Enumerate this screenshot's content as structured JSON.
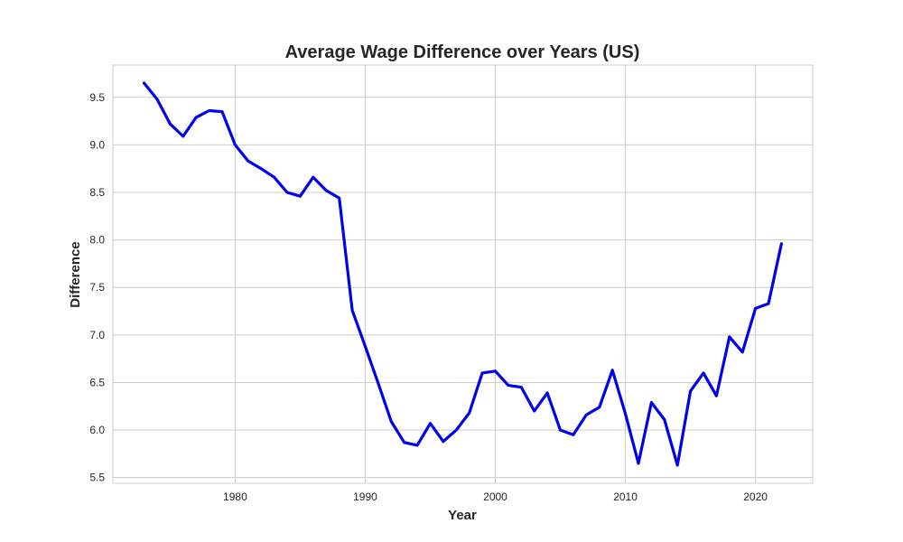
{
  "chart_data": {
    "type": "line",
    "title": "Average Wage Difference over Years (US)",
    "xlabel": "Year",
    "ylabel": "Difference",
    "xlim": [
      1970.6,
      2024.4
    ],
    "ylim": [
      5.44,
      9.84
    ],
    "xticks": [
      1980,
      1990,
      2000,
      2010,
      2020
    ],
    "yticks": [
      5.5,
      6.0,
      6.5,
      7.0,
      7.5,
      8.0,
      8.5,
      9.0,
      9.5
    ],
    "ytick_labels": [
      "5.5",
      "6.0",
      "6.5",
      "7.0",
      "7.5",
      "8.0",
      "8.5",
      "9.0",
      "9.5"
    ],
    "grid": true,
    "line_color": "#0000ee",
    "series": [
      {
        "x": [
          1973,
          1974,
          1975,
          1976,
          1977,
          1978,
          1979,
          1980,
          1981,
          1982,
          1983,
          1984,
          1985,
          1986,
          1987,
          1988,
          1989,
          1990,
          1991,
          1992,
          1993,
          1994,
          1995,
          1996,
          1997,
          1998,
          1999,
          2000,
          2001,
          2002,
          2003,
          2004,
          2005,
          2006,
          2007,
          2008,
          2009,
          2010,
          2011,
          2012,
          2013,
          2014,
          2015,
          2016,
          2017,
          2018,
          2019,
          2020,
          2021,
          2022
        ],
        "values": [
          9.65,
          9.48,
          9.22,
          9.09,
          9.29,
          9.36,
          9.35,
          9.0,
          8.83,
          8.75,
          8.66,
          8.5,
          8.46,
          8.66,
          8.52,
          8.44,
          7.26,
          6.88,
          6.49,
          6.09,
          5.87,
          5.84,
          6.07,
          5.88,
          6.0,
          6.18,
          6.6,
          6.62,
          6.47,
          6.45,
          6.2,
          6.39,
          6.0,
          5.95,
          6.16,
          6.24,
          6.63,
          6.17,
          5.65,
          6.29,
          6.11,
          5.63,
          6.41,
          6.6,
          6.36,
          6.98,
          6.82,
          7.28,
          7.33,
          7.96
        ]
      }
    ]
  }
}
